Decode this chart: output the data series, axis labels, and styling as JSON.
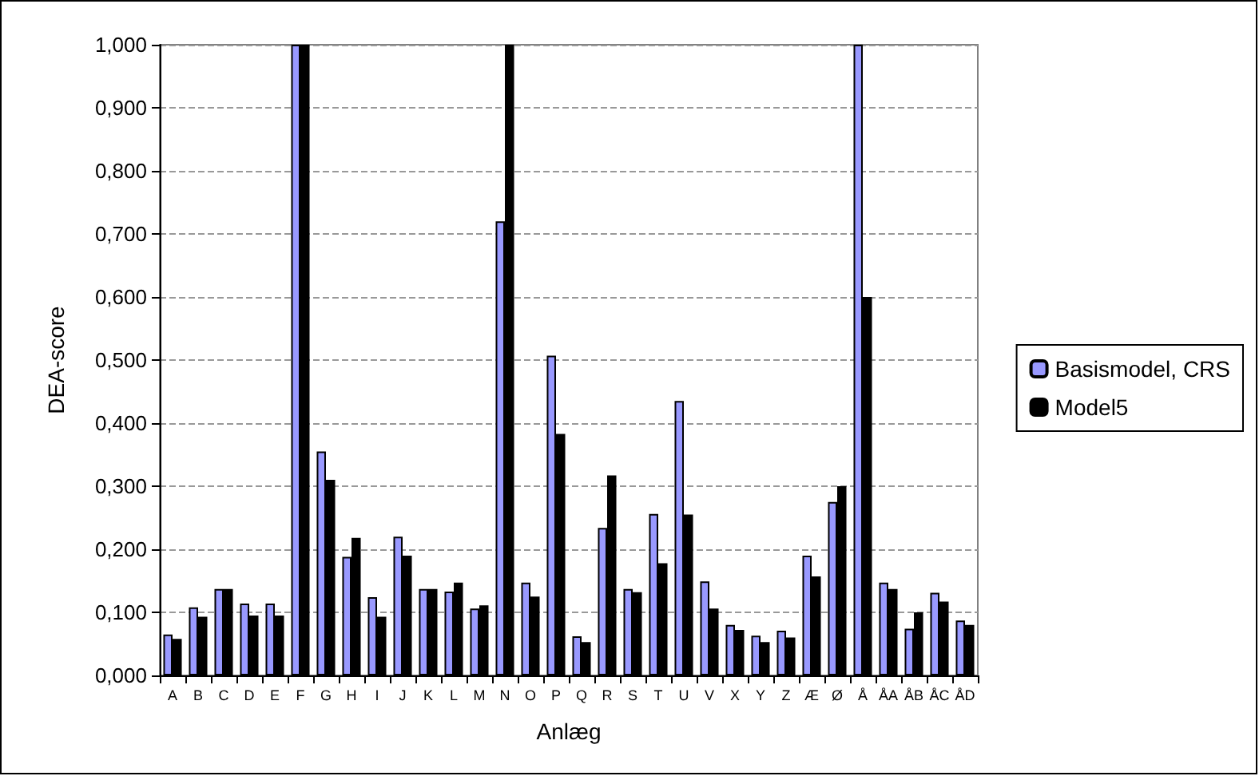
{
  "chart_data": {
    "type": "bar",
    "xlabel": "Anlæg",
    "ylabel": "DEA-score",
    "categories": [
      "A",
      "B",
      "C",
      "D",
      "E",
      "F",
      "G",
      "H",
      "I",
      "J",
      "K",
      "L",
      "M",
      "N",
      "O",
      "P",
      "Q",
      "R",
      "S",
      "T",
      "U",
      "V",
      "X",
      "Y",
      "Z",
      "Æ",
      "Ø",
      "Å",
      "ÅA",
      "ÅB",
      "ÅC",
      "ÅD"
    ],
    "series": [
      {
        "name": "Basismodel, CRS",
        "color": "#9999ff",
        "values": [
          0.065,
          0.108,
          0.137,
          0.114,
          0.114,
          1.0,
          0.355,
          0.188,
          0.124,
          0.22,
          0.137,
          0.133,
          0.106,
          0.72,
          0.147,
          0.507,
          0.062,
          0.234,
          0.137,
          0.256,
          0.435,
          0.149,
          0.08,
          0.063,
          0.071,
          0.19,
          0.275,
          1.0,
          0.147,
          0.074,
          0.131,
          0.087
        ]
      },
      {
        "name": "Model5",
        "color": "#000000",
        "values": [
          0.058,
          0.093,
          0.137,
          0.095,
          0.095,
          1.0,
          0.31,
          0.218,
          0.093,
          0.19,
          0.137,
          0.147,
          0.111,
          1.0,
          0.125,
          0.383,
          0.053,
          0.317,
          0.132,
          0.178,
          0.255,
          0.106,
          0.072,
          0.053,
          0.06,
          0.157,
          0.3,
          0.6,
          0.137,
          0.1,
          0.117,
          0.08
        ]
      }
    ],
    "ylim": [
      0,
      1
    ],
    "yticks": [
      {
        "value": 0,
        "label": "0,000"
      },
      {
        "value": 0.1,
        "label": "0,100"
      },
      {
        "value": 0.2,
        "label": "0,200"
      },
      {
        "value": 0.3,
        "label": "0,300"
      },
      {
        "value": 0.4,
        "label": "0,400"
      },
      {
        "value": 0.5,
        "label": "0,500"
      },
      {
        "value": 0.6,
        "label": "0,600"
      },
      {
        "value": 0.7,
        "label": "0,700"
      },
      {
        "value": 0.8,
        "label": "0,800"
      },
      {
        "value": 0.9,
        "label": "0,900"
      },
      {
        "value": 1,
        "label": "1,000"
      }
    ],
    "grid": "y",
    "legend": "right"
  }
}
